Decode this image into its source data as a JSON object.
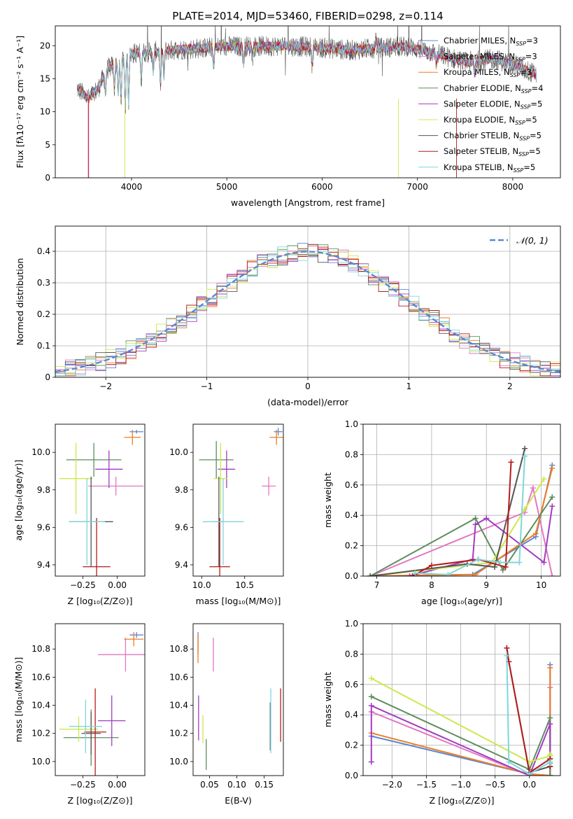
{
  "colors": {
    "Chabrier MILES": "#5b87d6",
    "Salpeter MILES": "#e377c2",
    "Kroupa MILES": "#ed7d23",
    "Chabrier ELODIE": "#5e8c5e",
    "Salpeter ELODIE": "#a23cc0",
    "Kroupa ELODIE": "#cde84c",
    "Chabrier STELIB": "#555555",
    "Salpeter STELIB": "#b51c1c",
    "Kroupa STELIB": "#7fd6db",
    "gauss": "#5b87d6",
    "grid": "#b0b0b0"
  },
  "chart_data": [
    {
      "type": "line",
      "title": "PLATE=2014, MJD=53460, FIBERID=0298, z=0.114",
      "xlabel": "wavelength [Angstrom, rest frame]",
      "ylabel": "Flux [fλ10⁻¹⁷ erg cm⁻² s⁻¹ A⁻¹]",
      "xlim": [
        3200,
        8500
      ],
      "ylim": [
        0,
        23
      ],
      "xticks": [
        4000,
        5000,
        6000,
        7000,
        8000
      ],
      "yticks": [
        0,
        5,
        10,
        15,
        20
      ],
      "grid": false,
      "legend_position": "right",
      "legend": [
        {
          "name": "Chabrier MILES",
          "nssp": "3"
        },
        {
          "name": "Salpeter MILES",
          "nssp": "3"
        },
        {
          "name": "Kroupa MILES",
          "nssp": "3"
        },
        {
          "name": "Chabrier ELODIE",
          "nssp": "4"
        },
        {
          "name": "Salpeter ELODIE",
          "nssp": "5"
        },
        {
          "name": "Kroupa ELODIE",
          "nssp": "5"
        },
        {
          "name": "Chabrier STELIB",
          "nssp": "5"
        },
        {
          "name": "Salpeter STELIB",
          "nssp": "5"
        },
        {
          "name": "Kroupa STELIB",
          "nssp": "5"
        }
      ],
      "continuum": {
        "x": [
          3430,
          3550,
          3650,
          3750,
          3900,
          4000,
          4150,
          4400,
          4700,
          5000,
          5300,
          5600,
          6000,
          6300,
          6600,
          6900,
          7200,
          7500,
          7800,
          8000,
          8250
        ],
        "y": [
          13.5,
          12.0,
          13.5,
          16.5,
          18.0,
          18.8,
          19.0,
          19.3,
          19.6,
          19.9,
          19.9,
          20.0,
          19.7,
          19.3,
          19.7,
          19.9,
          18.8,
          17.5,
          18.0,
          17.2,
          15.6
        ]
      }
    },
    {
      "type": "step",
      "xlabel": "(data-model)/error",
      "ylabel": "Normed distribution",
      "xlim": [
        -2.5,
        2.5
      ],
      "ylim": [
        0,
        0.48
      ],
      "xticks": [
        -2,
        -1,
        0,
        1,
        2
      ],
      "yticks": [
        0.0,
        0.1,
        0.2,
        0.3,
        0.4
      ],
      "grid": true,
      "legend": "𝒩(0, 1)",
      "legend_position": "top-right",
      "bin_width": 0.1
    },
    {
      "type": "errorbar",
      "xlabel": "Z [log₁₀(Z/Z⊙)]",
      "ylabel": "age  [log₁₀(age/yr)]",
      "xlim": [
        -0.45,
        0.2
      ],
      "ylim": [
        9.34,
        10.15
      ],
      "xticks": [
        -0.25,
        0.0
      ],
      "xticklabels": [
        "−0.25",
        "0.00"
      ],
      "yticks": [
        9.4,
        9.6,
        9.8,
        10.0
      ],
      "yticklabels": [
        "9.4",
        "9.6",
        "9.8",
        "10.0"
      ],
      "points": [
        {
          "series": "Chabrier MILES",
          "x": 0.14,
          "y": 10.11,
          "xerr": 0.05,
          "yerr": 0.01
        },
        {
          "series": "Salpeter MILES",
          "x": -0.01,
          "y": 9.82,
          "xerr": 0.2,
          "yerr": 0.05
        },
        {
          "series": "Kroupa MILES",
          "x": 0.11,
          "y": 10.08,
          "xerr": 0.06,
          "yerr": 0.04
        },
        {
          "series": "Chabrier ELODIE",
          "x": -0.17,
          "y": 9.96,
          "xerr": 0.2,
          "yerr": 0.09
        },
        {
          "series": "Salpeter ELODIE",
          "x": -0.06,
          "y": 9.91,
          "xerr": 0.1,
          "yerr": 0.1
        },
        {
          "series": "Kroupa ELODIE",
          "x": -0.3,
          "y": 9.86,
          "xerr": 0.12,
          "yerr": 0.19
        },
        {
          "series": "Chabrier STELIB",
          "x": -0.19,
          "y": 9.63,
          "xerr": 0.16,
          "yerr": 0.24
        },
        {
          "series": "Salpeter STELIB",
          "x": -0.15,
          "y": 9.39,
          "xerr": 0.1,
          "yerr": 0.26
        },
        {
          "series": "Kroupa STELIB",
          "x": -0.22,
          "y": 9.63,
          "xerr": 0.13,
          "yerr": 0.23
        }
      ]
    },
    {
      "type": "errorbar",
      "xlabel": "mass [log₁₀(M/M⊙)]",
      "ylabel": "",
      "xlim": [
        9.9,
        10.95
      ],
      "ylim": [
        9.34,
        10.15
      ],
      "xticks": [
        10.0,
        10.5
      ],
      "xticklabels": [
        "10.0",
        "10.5"
      ],
      "yticks": [
        9.4,
        9.6,
        9.8,
        10.0
      ],
      "yticklabels": [
        "9.4",
        "9.6",
        "9.8",
        "10.0"
      ],
      "points": [
        {
          "series": "Chabrier MILES",
          "x": 10.89,
          "y": 10.11,
          "xerr": 0.05,
          "yerr": 0.02
        },
        {
          "series": "Salpeter MILES",
          "x": 10.78,
          "y": 9.82,
          "xerr": 0.08,
          "yerr": 0.05
        },
        {
          "series": "Kroupa MILES",
          "x": 10.87,
          "y": 10.08,
          "xerr": 0.08,
          "yerr": 0.04
        },
        {
          "series": "Chabrier ELODIE",
          "x": 10.17,
          "y": 9.96,
          "xerr": 0.2,
          "yerr": 0.1
        },
        {
          "series": "Salpeter ELODIE",
          "x": 10.29,
          "y": 9.91,
          "xerr": 0.1,
          "yerr": 0.1
        },
        {
          "series": "Kroupa ELODIE",
          "x": 10.22,
          "y": 9.86,
          "xerr": 0.08,
          "yerr": 0.19
        },
        {
          "series": "Chabrier STELIB",
          "x": 10.2,
          "y": 9.63,
          "xerr": 0.05,
          "yerr": 0.24
        },
        {
          "series": "Salpeter STELIB",
          "x": 10.21,
          "y": 9.39,
          "xerr": 0.12,
          "yerr": 0.26
        },
        {
          "series": "Kroupa STELIB",
          "x": 10.25,
          "y": 9.63,
          "xerr": 0.24,
          "yerr": 0.23
        }
      ]
    },
    {
      "type": "line",
      "xlabel": "age  [log₁₀(age/yr)]",
      "ylabel": "mass weight",
      "xlim": [
        6.75,
        10.35
      ],
      "ylim": [
        0,
        1
      ],
      "xticks": [
        7,
        8,
        9,
        10
      ],
      "xticklabels": [
        "7",
        "8",
        "9",
        "10"
      ],
      "yticks": [
        0,
        0.2,
        0.4,
        0.6,
        0.8,
        1.0
      ],
      "yticklabels": [
        "0.0",
        "0.2",
        "0.4",
        "0.6",
        "0.8",
        "1.0"
      ],
      "grid": true,
      "series": [
        {
          "name": "Chabrier MILES",
          "x": [
            6.88,
            8.75,
            9.9,
            10.2
          ],
          "y": [
            0.0,
            0.01,
            0.26,
            0.73
          ]
        },
        {
          "name": "Salpeter MILES",
          "x": [
            6.88,
            9.7,
            9.85,
            10.2
          ],
          "y": [
            0.0,
            0.42,
            0.58,
            0.0
          ]
        },
        {
          "name": "Kroupa MILES",
          "x": [
            6.88,
            8.8,
            9.9,
            10.2
          ],
          "y": [
            0.0,
            0.01,
            0.28,
            0.71
          ]
        },
        {
          "name": "Chabrier ELODIE",
          "x": [
            6.88,
            8.8,
            9.3,
            10.2
          ],
          "y": [
            0.0,
            0.38,
            0.04,
            0.52
          ]
        },
        {
          "name": "Salpeter ELODIE",
          "x": [
            7.6,
            8.75,
            8.8,
            9.0,
            10.05,
            10.2
          ],
          "y": [
            0.0,
            0.11,
            0.34,
            0.38,
            0.09,
            0.46
          ]
        },
        {
          "name": "Kroupa ELODIE",
          "x": [
            6.88,
            9.1,
            9.7,
            10.05
          ],
          "y": [
            0.0,
            0.09,
            0.44,
            0.64
          ]
        },
        {
          "name": "Chabrier STELIB",
          "x": [
            6.88,
            8.65,
            9.15,
            9.7
          ],
          "y": [
            0.0,
            0.08,
            0.06,
            0.84
          ]
        },
        {
          "name": "Salpeter STELIB",
          "x": [
            7.65,
            8.0,
            8.85,
            9.35,
            9.45
          ],
          "y": [
            0.0,
            0.07,
            0.11,
            0.06,
            0.75
          ]
        },
        {
          "name": "Kroupa STELIB",
          "x": [
            7.7,
            8.3,
            8.85,
            9.25,
            9.6,
            9.7
          ],
          "y": [
            0.02,
            0.01,
            0.11,
            0.09,
            0.09,
            0.79
          ]
        }
      ]
    },
    {
      "type": "errorbar",
      "xlabel": "Z [log₁₀(Z/Z⊙)]",
      "ylabel": "mass [log₁₀(M/M⊙)]",
      "xlim": [
        -0.45,
        0.2
      ],
      "ylim": [
        9.9,
        10.98
      ],
      "xticks": [
        -0.25,
        0.0
      ],
      "xticklabels": [
        "−0.25",
        "0.00"
      ],
      "yticks": [
        10.0,
        10.2,
        10.4,
        10.6,
        10.8
      ],
      "yticklabels": [
        "10.0",
        "10.2",
        "10.4",
        "10.6",
        "10.8"
      ],
      "points": [
        {
          "series": "Chabrier MILES",
          "x": 0.14,
          "y": 10.9,
          "xerr": 0.05,
          "yerr": 0.02
        },
        {
          "series": "Salpeter MILES",
          "x": 0.06,
          "y": 10.76,
          "xerr": 0.2,
          "yerr": 0.12
        },
        {
          "series": "Kroupa MILES",
          "x": 0.12,
          "y": 10.87,
          "xerr": 0.07,
          "yerr": 0.05
        },
        {
          "series": "Chabrier ELODIE",
          "x": -0.19,
          "y": 10.17,
          "xerr": 0.2,
          "yerr": 0.2
        },
        {
          "series": "Salpeter ELODIE",
          "x": -0.04,
          "y": 10.29,
          "xerr": 0.1,
          "yerr": 0.18
        },
        {
          "series": "Kroupa ELODIE",
          "x": -0.28,
          "y": 10.23,
          "xerr": 0.14,
          "yerr": 0.09
        },
        {
          "series": "Chabrier STELIB",
          "x": -0.19,
          "y": 10.2,
          "xerr": 0.07,
          "yerr": 0.15
        },
        {
          "series": "Salpeter STELIB",
          "x": -0.16,
          "y": 10.21,
          "xerr": 0.08,
          "yerr": 0.31
        },
        {
          "series": "Kroupa STELIB",
          "x": -0.23,
          "y": 10.25,
          "xerr": 0.12,
          "yerr": 0.19
        }
      ]
    },
    {
      "type": "errorbar",
      "xlabel": "E(B-V)",
      "ylabel": "",
      "xlim": [
        0.02,
        0.185
      ],
      "ylim": [
        9.9,
        10.98
      ],
      "xticks": [
        0.05,
        0.1,
        0.15
      ],
      "xticklabels": [
        "0.05",
        "0.10",
        "0.15"
      ],
      "yticks": [
        10.0,
        10.2,
        10.4,
        10.6,
        10.8
      ],
      "yticklabels": [
        "10.0",
        "10.2",
        "10.4",
        "10.6",
        "10.8"
      ],
      "points": [
        {
          "series": "Chabrier MILES",
          "x": 0.029,
          "y": 10.84,
          "xerr": 0.0,
          "yerr": 0.08
        },
        {
          "series": "Salpeter MILES",
          "x": 0.057,
          "y": 10.76,
          "xerr": 0.0,
          "yerr": 0.12
        },
        {
          "series": "Kroupa MILES",
          "x": 0.029,
          "y": 10.8,
          "xerr": 0.0,
          "yerr": 0.1
        },
        {
          "series": "Chabrier ELODIE",
          "x": 0.044,
          "y": 10.05,
          "xerr": 0.0,
          "yerr": 0.11
        },
        {
          "series": "Salpeter ELODIE",
          "x": 0.03,
          "y": 10.31,
          "xerr": 0.0,
          "yerr": 0.16
        },
        {
          "series": "Kroupa ELODIE",
          "x": 0.038,
          "y": 10.23,
          "xerr": 0.0,
          "yerr": 0.1
        },
        {
          "series": "Chabrier STELIB",
          "x": 0.161,
          "y": 10.25,
          "xerr": 0.0,
          "yerr": 0.17
        },
        {
          "series": "Salpeter STELIB",
          "x": 0.18,
          "y": 10.33,
          "xerr": 0.0,
          "yerr": 0.19
        },
        {
          "series": "Kroupa STELIB",
          "x": 0.162,
          "y": 10.29,
          "xerr": 0.0,
          "yerr": 0.23
        }
      ]
    },
    {
      "type": "line",
      "xlabel": "Z [log₁₀(Z/Z⊙)]",
      "ylabel": "mass weight",
      "xlim": [
        -2.42,
        0.45
      ],
      "ylim": [
        0,
        1
      ],
      "xticks": [
        -2.0,
        -1.5,
        -1.0,
        -0.5,
        0.0
      ],
      "xticklabels": [
        "−2.0",
        "−1.5",
        "−1.0",
        "−0.5",
        "0.0"
      ],
      "yticks": [
        0,
        0.2,
        0.4,
        0.6,
        0.8,
        1.0
      ],
      "yticklabels": [
        "0.0",
        "0.2",
        "0.4",
        "0.6",
        "0.8",
        "1.0"
      ],
      "grid": true,
      "series": [
        {
          "name": "Chabrier MILES",
          "x": [
            -2.3,
            0.0,
            0.3,
            0.3
          ],
          "y": [
            0.26,
            0.01,
            0.0,
            0.73
          ]
        },
        {
          "name": "Salpeter MILES",
          "x": [
            -2.3,
            0.0,
            0.3,
            0.3
          ],
          "y": [
            0.42,
            0.0,
            0.0,
            0.58
          ]
        },
        {
          "name": "Kroupa MILES",
          "x": [
            -2.3,
            0.0,
            0.3,
            0.3
          ],
          "y": [
            0.28,
            0.01,
            0.0,
            0.71
          ]
        },
        {
          "name": "Chabrier ELODIE",
          "x": [
            -2.3,
            0.0,
            0.3,
            0.3
          ],
          "y": [
            0.52,
            0.04,
            0.38,
            0.0
          ]
        },
        {
          "name": "Salpeter ELODIE",
          "x": [
            -2.3,
            -2.3,
            0.0,
            0.3,
            0.3
          ],
          "y": [
            0.09,
            0.46,
            0.0,
            0.34,
            0.11
          ]
        },
        {
          "name": "Kroupa ELODIE",
          "x": [
            -2.3,
            0.0,
            0.3,
            0.3
          ],
          "y": [
            0.64,
            0.09,
            0.13,
            0.14
          ]
        },
        {
          "name": "Chabrier STELIB",
          "x": [
            -0.33,
            -0.3,
            0.0,
            0.3,
            0.3
          ],
          "y": [
            0.84,
            0.75,
            0.02,
            0.06,
            0.08
          ]
        },
        {
          "name": "Salpeter STELIB",
          "x": [
            -0.33,
            -0.3,
            0.0,
            0.3,
            0.3
          ],
          "y": [
            0.84,
            0.75,
            0.02,
            0.11,
            0.06
          ]
        },
        {
          "name": "Kroupa STELIB",
          "x": [
            -0.33,
            -0.3,
            0.0,
            0.3,
            0.3
          ],
          "y": [
            0.79,
            0.09,
            0.01,
            0.09,
            0.08
          ]
        }
      ]
    }
  ]
}
